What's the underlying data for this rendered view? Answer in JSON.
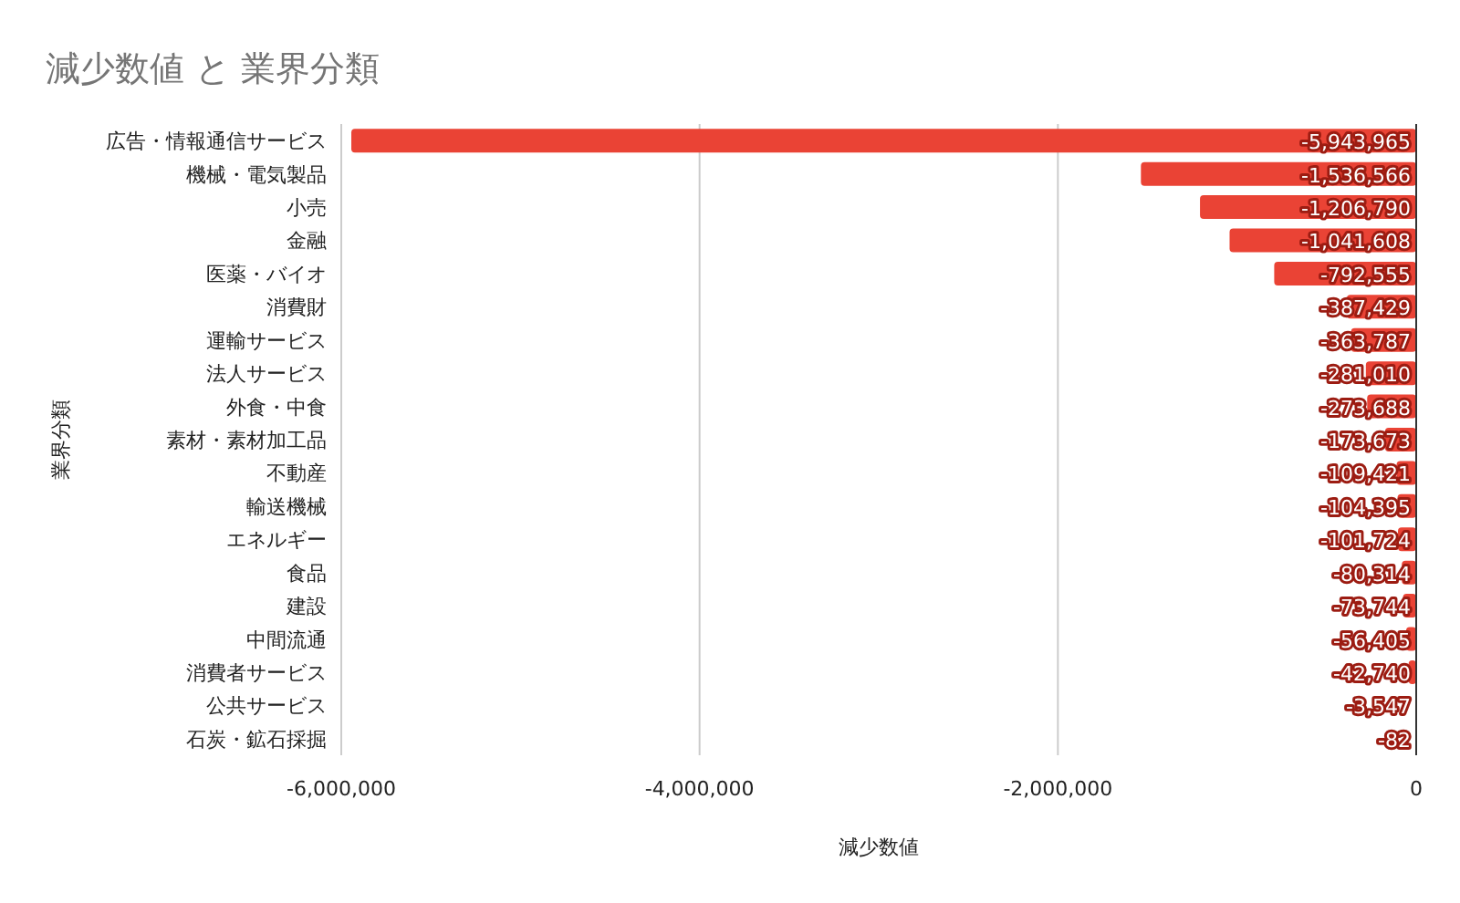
{
  "chart_data": {
    "type": "bar",
    "orientation": "horizontal",
    "title": "減少数値 と 業界分類",
    "xlabel": "減少数値",
    "ylabel": "業界分類",
    "categories": [
      "広告・情報通信サービス",
      "機械・電気製品",
      "小売",
      "金融",
      "医薬・バイオ",
      "消費財",
      "運輸サービス",
      "法人サービス",
      "外食・中食",
      "素材・素材加工品",
      "不動産",
      "輸送機械",
      "エネルギー",
      "食品",
      "建設",
      "中間流通",
      "消費者サービス",
      "公共サービス",
      "石炭・鉱石採掘"
    ],
    "values": [
      -5943965,
      -1536566,
      -1206790,
      -1041608,
      -792555,
      -387429,
      -363787,
      -281010,
      -273688,
      -173673,
      -109421,
      -104395,
      -101724,
      -80314,
      -73744,
      -56405,
      -42740,
      -3547,
      -82
    ],
    "value_labels": [
      "-5,943,965",
      "-1,536,566",
      "-1,206,790",
      "-1,041,608",
      "-792,555",
      "-387,429",
      "-363,787",
      "-281,010",
      "-273,688",
      "-173,673",
      "-109,421",
      "-104,395",
      "-101,724",
      "-80,314",
      "-73,744",
      "-56,405",
      "-42,740",
      "-3,547",
      "-82"
    ],
    "color": "#ea4335",
    "xlim": [
      -6000000,
      0
    ],
    "xticks": [
      {
        "value": -6000000,
        "label": "-6,000,000"
      },
      {
        "value": -4000000,
        "label": "-4,000,000"
      },
      {
        "value": -2000000,
        "label": "-2,000,000"
      },
      0
    ],
    "grid": "x"
  }
}
